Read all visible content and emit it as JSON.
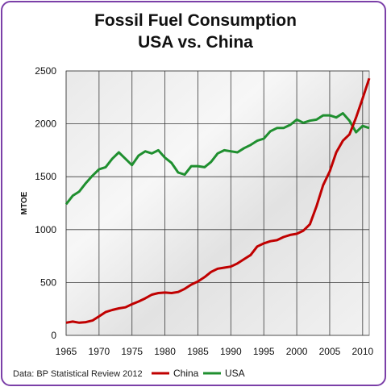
{
  "chart_data": {
    "type": "line",
    "title_line1": "Fossil Fuel Consumption",
    "title_line2": "USA vs. China",
    "ylabel": "MTOE",
    "xlabel": "",
    "xlim": [
      1965,
      2011
    ],
    "ylim": [
      0,
      2500
    ],
    "xticks": [
      1965,
      1970,
      1975,
      1980,
      1985,
      1990,
      1995,
      2000,
      2005,
      2010
    ],
    "yticks": [
      0,
      500,
      1000,
      1500,
      2000,
      2500
    ],
    "grid": true,
    "legend_placement": "bottom-right",
    "source": "Data: BP Statistical Review 2012",
    "x": [
      1965,
      1966,
      1967,
      1968,
      1969,
      1970,
      1971,
      1972,
      1973,
      1974,
      1975,
      1976,
      1977,
      1978,
      1979,
      1980,
      1981,
      1982,
      1983,
      1984,
      1985,
      1986,
      1987,
      1988,
      1989,
      1990,
      1991,
      1992,
      1993,
      1994,
      1995,
      1996,
      1997,
      1998,
      1999,
      2000,
      2001,
      2002,
      2003,
      2004,
      2005,
      2006,
      2007,
      2008,
      2009,
      2010,
      2011
    ],
    "series": [
      {
        "name": "China",
        "color": "#c00000",
        "values": [
          120,
          130,
          120,
          125,
          140,
          180,
          220,
          240,
          255,
          265,
          295,
          320,
          350,
          385,
          400,
          405,
          400,
          410,
          440,
          480,
          510,
          550,
          600,
          630,
          640,
          650,
          680,
          720,
          760,
          840,
          870,
          890,
          900,
          930,
          950,
          960,
          990,
          1050,
          1220,
          1420,
          1550,
          1730,
          1840,
          1900,
          2060,
          2240,
          2430
        ]
      },
      {
        "name": "USA",
        "color": "#1f8f2f",
        "values": [
          1240,
          1320,
          1360,
          1440,
          1510,
          1570,
          1590,
          1670,
          1730,
          1670,
          1610,
          1700,
          1740,
          1720,
          1750,
          1680,
          1630,
          1540,
          1520,
          1600,
          1600,
          1590,
          1640,
          1720,
          1750,
          1740,
          1730,
          1770,
          1800,
          1840,
          1860,
          1930,
          1960,
          1960,
          1990,
          2040,
          2010,
          2030,
          2040,
          2080,
          2080,
          2060,
          2100,
          2030,
          1920,
          1980,
          1960
        ]
      }
    ]
  }
}
